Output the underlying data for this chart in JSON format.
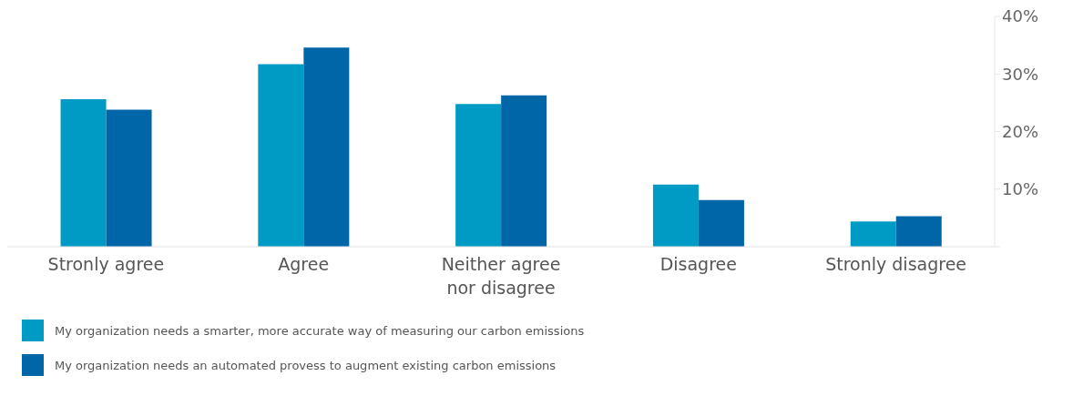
{
  "chart_data": {
    "type": "bar",
    "categories": [
      "Stronly agree",
      "Agree",
      "Neither agree nor disagree",
      "Disagree",
      "Stronly disagree"
    ],
    "series": [
      {
        "name": "My organization needs a smarter, more accurate way of measuring our carbon emissions",
        "color": "#009bc4",
        "values": [
          25.6,
          31.7,
          24.8,
          10.8,
          4.4
        ]
      },
      {
        "name": "My organization needs an automated provess to augment existing carbon emissions",
        "color": "#0066a8",
        "values": [
          23.8,
          34.6,
          26.3,
          8.1,
          5.3
        ]
      }
    ],
    "ylim": [
      0,
      40
    ],
    "yticks": [
      {
        "value": 0,
        "label": null
      },
      {
        "value": 10,
        "label": "10%"
      },
      {
        "value": 20,
        "label": "20%"
      },
      {
        "value": 30,
        "label": "30%"
      },
      {
        "value": 40,
        "label": "40%"
      }
    ],
    "grid": false,
    "legend": "bottom"
  }
}
